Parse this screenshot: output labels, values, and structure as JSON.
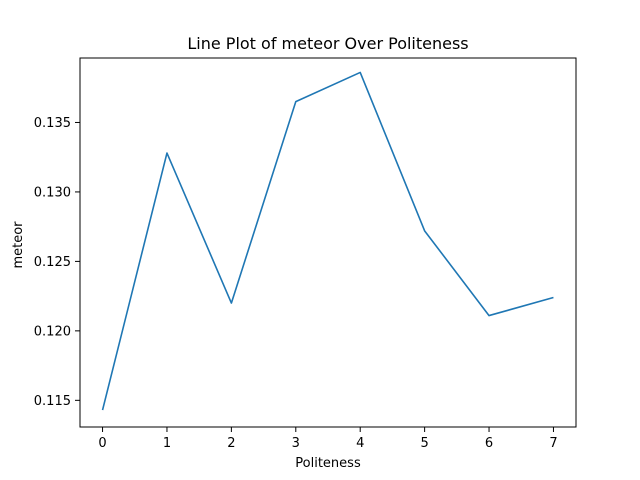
{
  "chart_data": {
    "type": "line",
    "title": "Line Plot of meteor Over Politeness",
    "xlabel": "Politeness",
    "ylabel": "meteor",
    "x": [
      0,
      1,
      2,
      3,
      4,
      5,
      6,
      7
    ],
    "series": [
      {
        "values": [
          0.1143,
          0.1328,
          0.122,
          0.1365,
          0.1386,
          0.1272,
          0.1211,
          0.1224
        ],
        "color": "#1f77b4"
      }
    ],
    "x_ticks": [
      0,
      1,
      2,
      3,
      4,
      5,
      6,
      7
    ],
    "x_tick_labels": [
      "0",
      "1",
      "2",
      "3",
      "4",
      "5",
      "6",
      "7"
    ],
    "y_ticks": [
      0.115,
      0.12,
      0.125,
      0.13,
      0.135
    ],
    "y_tick_labels": [
      "0.115",
      "0.120",
      "0.125",
      "0.130",
      "0.135"
    ],
    "xlim": [
      -0.35,
      7.35
    ],
    "ylim": [
      0.11308,
      0.13964
    ],
    "grid": false,
    "legend": "none"
  }
}
